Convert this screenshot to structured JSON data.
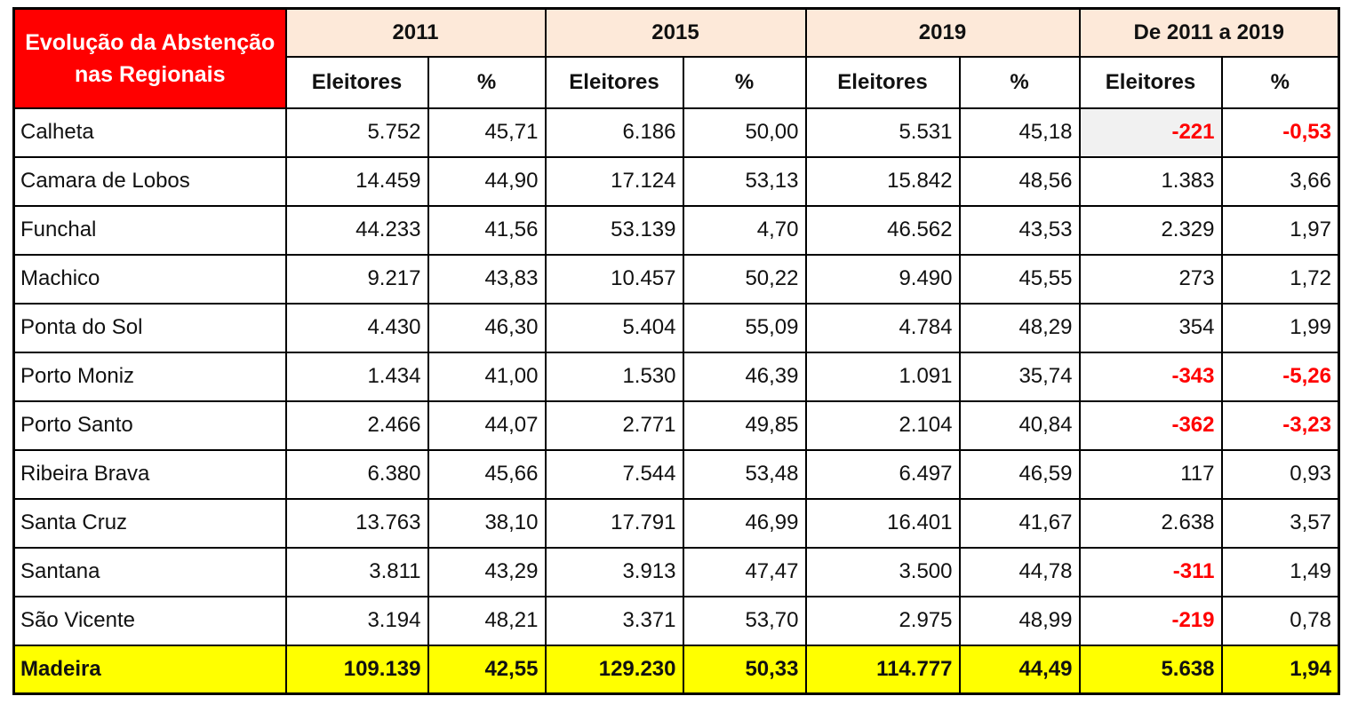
{
  "title": "Evolução da Abstenção nas Regionais",
  "group_labels": [
    "2011",
    "2015",
    "2019",
    "De 2011 a 2019"
  ],
  "sub_labels": [
    "Eleitores",
    "%",
    "Eleitores",
    "%",
    "Eleitores",
    "%",
    "Eleitores",
    "%"
  ],
  "rows": [
    {
      "name": "Calheta",
      "values": [
        "5.752",
        "45,71",
        "6.186",
        "50,00",
        "5.531",
        "45,18",
        "-221",
        "-0,53"
      ]
    },
    {
      "name": "Camara de Lobos",
      "values": [
        "14.459",
        "44,90",
        "17.124",
        "53,13",
        "15.842",
        "48,56",
        "1.383",
        "3,66"
      ]
    },
    {
      "name": "Funchal",
      "values": [
        "44.233",
        "41,56",
        "53.139",
        "4,70",
        "46.562",
        "43,53",
        "2.329",
        "1,97"
      ]
    },
    {
      "name": "Machico",
      "values": [
        "9.217",
        "43,83",
        "10.457",
        "50,22",
        "9.490",
        "45,55",
        "273",
        "1,72"
      ]
    },
    {
      "name": "Ponta do Sol",
      "values": [
        "4.430",
        "46,30",
        "5.404",
        "55,09",
        "4.784",
        "48,29",
        "354",
        "1,99"
      ]
    },
    {
      "name": "Porto Moniz",
      "values": [
        "1.434",
        "41,00",
        "1.530",
        "46,39",
        "1.091",
        "35,74",
        "-343",
        "-5,26"
      ]
    },
    {
      "name": "Porto Santo",
      "values": [
        "2.466",
        "44,07",
        "2.771",
        "49,85",
        "2.104",
        "40,84",
        "-362",
        "-3,23"
      ]
    },
    {
      "name": "Ribeira Brava",
      "values": [
        "6.380",
        "45,66",
        "7.544",
        "53,48",
        "6.497",
        "46,59",
        "117",
        "0,93"
      ]
    },
    {
      "name": "Santa Cruz",
      "values": [
        "13.763",
        "38,10",
        "17.791",
        "46,99",
        "16.401",
        "41,67",
        "2.638",
        "3,57"
      ]
    },
    {
      "name": "Santana",
      "values": [
        "3.811",
        "43,29",
        "3.913",
        "47,47",
        "3.500",
        "44,78",
        "-311",
        "1,49"
      ]
    },
    {
      "name": "São Vicente",
      "values": [
        "3.194",
        "48,21",
        "3.371",
        "53,70",
        "2.975",
        "48,99",
        "-219",
        "0,78"
      ]
    }
  ],
  "total_row": {
    "name": "Madeira",
    "values": [
      "109.139",
      "42,55",
      "129.230",
      "50,33",
      "114.777",
      "44,49",
      "5.638",
      "1,94"
    ]
  },
  "highlight_cell": {
    "row_index": 0,
    "value_index": 6
  },
  "colors": {
    "title_bg": "#FF0000",
    "title_text": "#FFFFFF",
    "group_header_bg": "#FDE9D9",
    "negative_text": "#FF0000",
    "total_bg": "#FFFF00",
    "highlight_bg": "#F1F1F1",
    "border": "#000000",
    "text": "#111111"
  },
  "chart_data": {
    "type": "table",
    "title": "Evolução da Abstenção nas Regionais",
    "column_groups": [
      "2011",
      "2015",
      "2019",
      "De 2011 a 2019"
    ],
    "columns": [
      "2011 Eleitores",
      "2011 %",
      "2015 Eleitores",
      "2015 %",
      "2019 Eleitores",
      "2019 %",
      "De 2011 a 2019 Eleitores",
      "De 2011 a 2019 %"
    ],
    "rows": [
      [
        "Calheta",
        5752,
        45.71,
        6186,
        50.0,
        5531,
        45.18,
        -221,
        -0.53
      ],
      [
        "Camara de Lobos",
        14459,
        44.9,
        17124,
        53.13,
        15842,
        48.56,
        1383,
        3.66
      ],
      [
        "Funchal",
        44233,
        41.56,
        53139,
        4.7,
        46562,
        43.53,
        2329,
        1.97
      ],
      [
        "Machico",
        9217,
        43.83,
        10457,
        50.22,
        9490,
        45.55,
        273,
        1.72
      ],
      [
        "Ponta do Sol",
        4430,
        46.3,
        5404,
        55.09,
        4784,
        48.29,
        354,
        1.99
      ],
      [
        "Porto Moniz",
        1434,
        41.0,
        1530,
        46.39,
        1091,
        35.74,
        -343,
        -5.26
      ],
      [
        "Porto Santo",
        2466,
        44.07,
        2771,
        49.85,
        2104,
        40.84,
        -362,
        -3.23
      ],
      [
        "Ribeira Brava",
        6380,
        45.66,
        7544,
        53.48,
        6497,
        46.59,
        117,
        0.93
      ],
      [
        "Santa Cruz",
        13763,
        38.1,
        17791,
        46.99,
        16401,
        41.67,
        2638,
        3.57
      ],
      [
        "Santana",
        3811,
        43.29,
        3913,
        47.47,
        3500,
        44.78,
        -311,
        1.49
      ],
      [
        "São Vicente",
        3194,
        48.21,
        3371,
        53.7,
        2975,
        48.99,
        -219,
        0.78
      ],
      [
        "Madeira",
        109139,
        42.55,
        129230,
        50.33,
        114777,
        44.49,
        5638,
        1.94
      ]
    ]
  }
}
